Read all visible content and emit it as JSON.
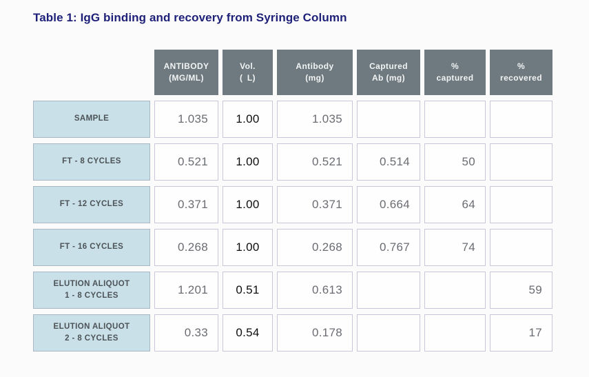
{
  "title": "Table 1: IgG binding and recovery from Syringe Column",
  "colors": {
    "title_text": "#1f2178",
    "header_bg": "#6f7a80",
    "header_text": "#f2f4f4",
    "row_label_bg": "#c9e0e8",
    "cell_border": "#c9c6d9",
    "cell_text": "#696c71",
    "vol_text": "#0d0d0d",
    "page_bg": "#fbfbfc"
  },
  "table": {
    "headers": [
      "ANTIBODY\n(MG/ML)",
      "Vol.\n( L)",
      "Antibody\n(mg)",
      "Captured\nAb (mg)",
      "%\ncaptured",
      "%\nrecovered"
    ],
    "rows": [
      {
        "label": "SAMPLE",
        "cells": [
          "1.035",
          "1.00",
          "1.035",
          "",
          "",
          ""
        ]
      },
      {
        "label": "FT - 8 CYCLES",
        "cells": [
          "0.521",
          "1.00",
          "0.521",
          "0.514",
          "50",
          ""
        ]
      },
      {
        "label": "FT - 12 CYCLES",
        "cells": [
          "0.371",
          "1.00",
          "0.371",
          "0.664",
          "64",
          ""
        ]
      },
      {
        "label": "FT - 16 CYCLES",
        "cells": [
          "0.268",
          "1.00",
          "0.268",
          "0.767",
          "74",
          ""
        ]
      },
      {
        "label": "ELUTION ALIQUOT\n1 - 8 CYCLES",
        "cells": [
          "1.201",
          "0.51",
          "0.613",
          "",
          "",
          "59"
        ]
      },
      {
        "label": "ELUTION ALIQUOT\n2 - 8 CYCLES",
        "cells": [
          "0.33",
          "0.54",
          "0.178",
          "",
          "",
          "17"
        ]
      }
    ]
  }
}
